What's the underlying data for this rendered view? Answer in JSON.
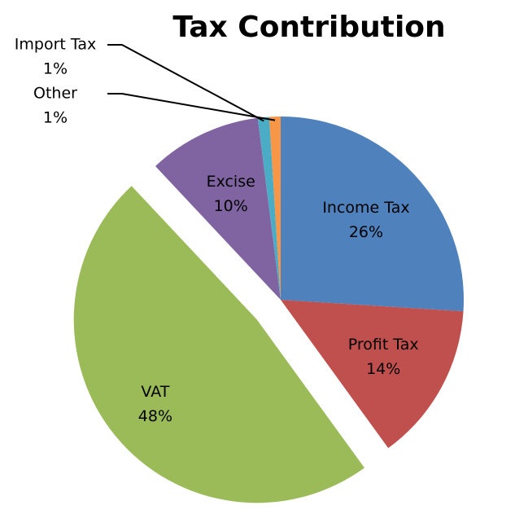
{
  "chart_data": {
    "type": "pie",
    "title": "Tax Contribution",
    "categories": [
      "Income Tax",
      "Profit Tax",
      "VAT",
      "Excise",
      "Import Tax",
      "Other"
    ],
    "values": [
      26,
      14,
      48,
      10,
      1,
      1
    ],
    "value_labels": [
      "26%",
      "14%",
      "48%",
      "10%",
      "1%",
      "1%"
    ],
    "colors": [
      "#4f81bd",
      "#c0504d",
      "#9bbb59",
      "#8064a2",
      "#4bacc6",
      "#f79646"
    ],
    "exploded": "VAT"
  }
}
